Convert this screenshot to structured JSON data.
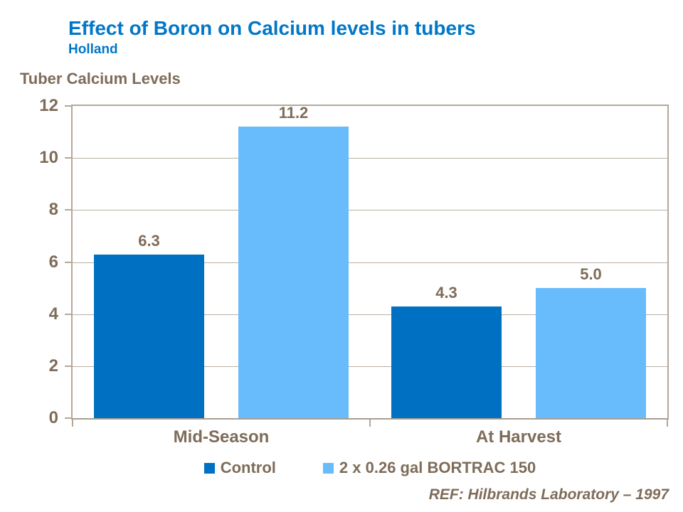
{
  "header": {
    "title": "Effect of Boron on Calcium levels in tubers",
    "subtitle": "Holland"
  },
  "axis_title": "Tuber Calcium Levels",
  "ref_note": "REF: Hilbrands Laboratory – 1997",
  "colors": {
    "title_blue": "#0077C8",
    "text_brown": "#7E6C59",
    "axis_line": "#B3A89B",
    "gridline": "#B9AFA2",
    "series_control": "#0071C2",
    "series_bortrac": "#68BCFB"
  },
  "chart_data": {
    "type": "bar",
    "title": "Tuber Calcium Levels",
    "xlabel": "",
    "ylabel": "Tuber Calcium Levels",
    "categories": [
      "Mid-Season",
      "At Harvest"
    ],
    "series": [
      {
        "name": "Control",
        "color": "#0071C2",
        "values": [
          6.3,
          4.3
        ],
        "labels": [
          "6.3",
          "4.3"
        ]
      },
      {
        "name": "2 x 0.26 gal BORTRAC 150",
        "color": "#68BCFB",
        "values": [
          11.2,
          5.0
        ],
        "labels": [
          "11.2",
          "5.0"
        ]
      }
    ],
    "ylim": [
      0,
      12
    ],
    "ytick_step": 2,
    "ytick_labels": [
      "0",
      "2",
      "4",
      "6",
      "8",
      "10",
      "12"
    ],
    "grid": true,
    "data_labels_shown": true,
    "legend_position": "bottom"
  }
}
